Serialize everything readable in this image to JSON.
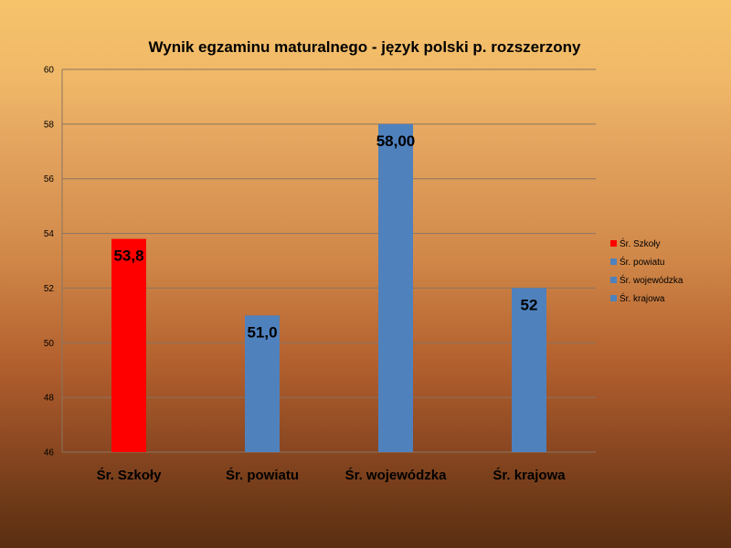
{
  "chart_data": {
    "type": "bar",
    "title": "Wynik egzaminu maturalnego - język polski  p. rozszerzony",
    "xlabel": "",
    "ylabel": "",
    "categories": [
      "Śr. Szkoły",
      "Śr. powiatu",
      "Śr. wojewódzka",
      "Śr. krajowa"
    ],
    "values": [
      53.8,
      51.0,
      58.0,
      52
    ],
    "data_labels": [
      "53,8",
      "51,0",
      "58,00",
      "52"
    ],
    "bar_colors": [
      "#ff0000",
      "#4f81bd",
      "#4f81bd",
      "#4f81bd"
    ],
    "ylim": [
      46,
      60
    ],
    "y_ticks": [
      46,
      48,
      50,
      52,
      54,
      56,
      58,
      60
    ],
    "grid": true,
    "legend": {
      "position": "right",
      "entries": [
        {
          "label": "Śr. Szkoły",
          "color": "#ff0000"
        },
        {
          "label": "Śr. powiatu",
          "color": "#4f81bd"
        },
        {
          "label": "Śr. wojewódzka",
          "color": "#4f81bd"
        },
        {
          "label": "Śr. krajowa",
          "color": "#4f81bd"
        }
      ]
    }
  }
}
